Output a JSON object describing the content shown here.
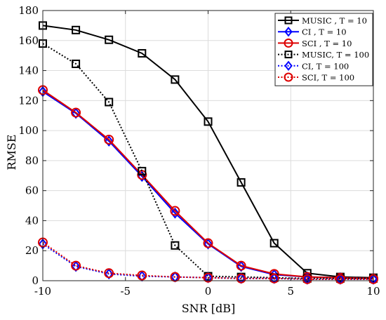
{
  "chart_data": {
    "type": "line",
    "xlabel": "SNR [dB]",
    "ylabel": "RMSE",
    "xlim": [
      -10,
      10
    ],
    "ylim": [
      0,
      180
    ],
    "xticks": [
      -10,
      -5,
      0,
      5,
      10
    ],
    "yticks": [
      0,
      20,
      40,
      60,
      80,
      100,
      120,
      140,
      160,
      180
    ],
    "grid": true,
    "legend_position": "top-right",
    "x": [
      -10,
      -8,
      -6,
      -4,
      -2,
      0,
      2,
      4,
      6,
      8,
      10
    ],
    "series": [
      {
        "name": "MUSIC , T = 10",
        "color": "#000000",
        "line_style": "solid",
        "marker": "square",
        "values": [
          170,
          167,
          160.5,
          151.5,
          134,
          106,
          65.5,
          25,
          5,
          2.5,
          2
        ]
      },
      {
        "name": "CI , T = 10",
        "color": "#0000ff",
        "line_style": "solid",
        "marker": "diamond",
        "values": [
          126,
          111.5,
          93,
          69.5,
          45,
          24.5,
          9.5,
          4,
          2.5,
          2,
          1.5
        ]
      },
      {
        "name": "SCI , T = 10",
        "color": "#dd0000",
        "line_style": "solid",
        "marker": "circle",
        "values": [
          127,
          112,
          94,
          70.5,
          46.5,
          25,
          10,
          4.5,
          2.5,
          2,
          1.5
        ]
      },
      {
        "name": "MUSIC, T = 100",
        "color": "#000000",
        "line_style": "dotted",
        "marker": "square",
        "values": [
          158,
          144.5,
          119,
          73,
          23.5,
          3,
          2.5,
          2,
          1.5,
          1.5,
          1.5
        ]
      },
      {
        "name": "CI, T = 100",
        "color": "#0000ff",
        "line_style": "dotted",
        "marker": "diamond",
        "values": [
          24.5,
          9.5,
          4.5,
          3,
          2.5,
          2,
          1.5,
          1.5,
          1,
          1,
          1
        ]
      },
      {
        "name": "SCI, T = 100",
        "color": "#dd0000",
        "line_style": "dotted",
        "marker": "circle",
        "values": [
          25.5,
          10,
          5,
          3.5,
          2.5,
          2,
          1.5,
          1.5,
          1,
          1,
          1
        ]
      }
    ]
  }
}
